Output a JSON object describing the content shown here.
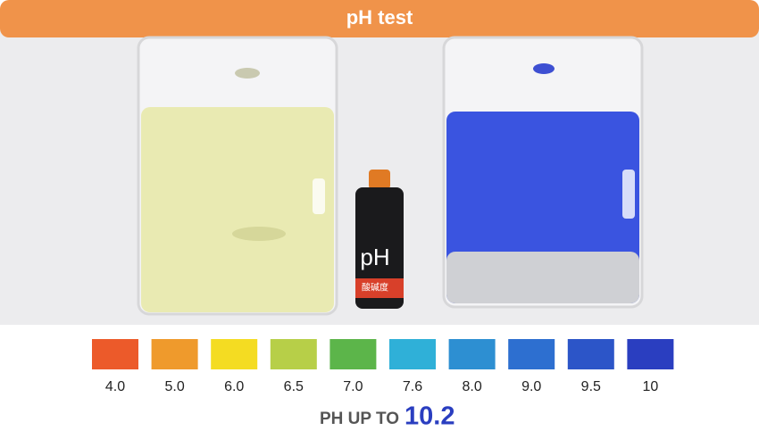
{
  "header": {
    "title": "pH test"
  },
  "photo": {
    "bottle_label": "pH",
    "bottle_sublabel": "酸碱度"
  },
  "scale": [
    {
      "label": "4.0",
      "color": "#ec5a2a"
    },
    {
      "label": "5.0",
      "color": "#ef9a2c"
    },
    {
      "label": "6.0",
      "color": "#f4dc22"
    },
    {
      "label": "6.5",
      "color": "#b7cf48"
    },
    {
      "label": "7.0",
      "color": "#5cb54a"
    },
    {
      "label": "7.6",
      "color": "#2fb0d8"
    },
    {
      "label": "8.0",
      "color": "#2d8fd2"
    },
    {
      "label": "9.0",
      "color": "#2d6fd0"
    },
    {
      "label": "9.5",
      "color": "#2c55c8"
    },
    {
      "label": "10",
      "color": "#2a3ec0"
    }
  ],
  "footer": {
    "prefix": "PH UP TO",
    "value": "10.2"
  }
}
